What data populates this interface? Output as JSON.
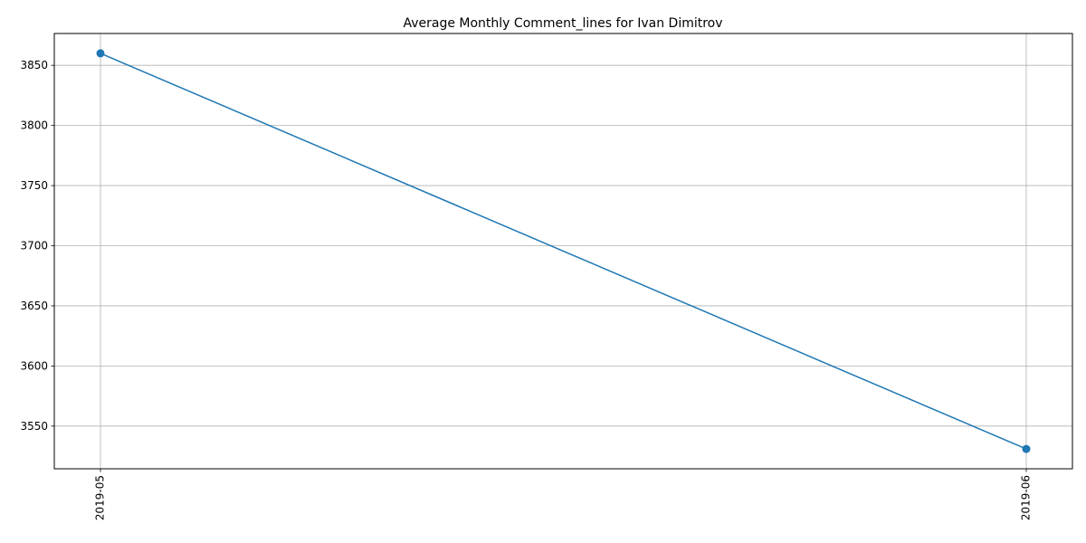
{
  "chart_data": {
    "type": "line",
    "title": "Average Monthly Comment_lines for Ivan Dimitrov",
    "xlabel": "",
    "ylabel": "",
    "categories": [
      "2019-05",
      "2019-06"
    ],
    "series": [
      {
        "values": [
          3860,
          3531
        ],
        "color": "#1f77b4",
        "marker": "circle"
      }
    ],
    "ylim": [
      3514.5,
      3876.5
    ],
    "yticks": [
      3550,
      3600,
      3650,
      3700,
      3750,
      3800,
      3850
    ],
    "grid": true,
    "x_tick_rotation": 90
  }
}
